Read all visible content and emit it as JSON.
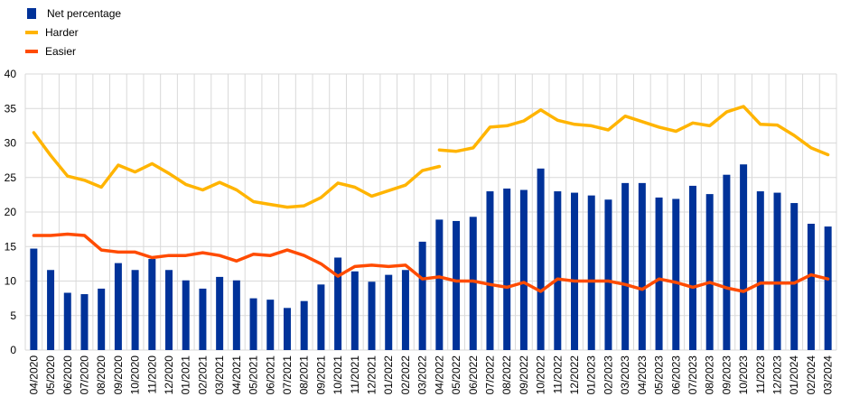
{
  "chart_data": {
    "type": "bar+line",
    "title": "",
    "xlabel": "",
    "ylabel": "",
    "ylim": [
      0,
      40
    ],
    "yticks": [
      "0",
      "5",
      "10",
      "15",
      "20",
      "25",
      "30",
      "35",
      "40"
    ],
    "grid": true,
    "legend_position": "top-left",
    "categories": [
      "04/2020",
      "05/2020",
      "06/2020",
      "07/2020",
      "08/2020",
      "09/2020",
      "10/2020",
      "11/2020",
      "12/2020",
      "01/2021",
      "02/2021",
      "03/2021",
      "04/2021",
      "05/2021",
      "06/2021",
      "07/2021",
      "08/2021",
      "09/2021",
      "10/2021",
      "11/2021",
      "12/2021",
      "01/2022",
      "02/2022",
      "03/2022",
      "04/2022",
      "05/2022",
      "06/2022",
      "07/2022",
      "08/2022",
      "09/2022",
      "10/2022",
      "11/2022",
      "12/2022",
      "01/2023",
      "02/2023",
      "03/2023",
      "04/2023",
      "05/2023",
      "06/2023",
      "07/2023",
      "08/2023",
      "09/2023",
      "10/2023",
      "11/2023",
      "12/2023",
      "01/2024",
      "02/2024",
      "03/2024"
    ],
    "series": [
      {
        "name": "Net percentage",
        "type": "bar",
        "color": "#003299",
        "values": [
          14.7,
          11.6,
          8.3,
          8.1,
          8.9,
          12.6,
          11.6,
          13.2,
          11.6,
          10.1,
          8.9,
          10.6,
          10.1,
          7.5,
          7.3,
          6.1,
          7.1,
          9.5,
          13.4,
          11.4,
          9.9,
          10.9,
          11.6,
          15.7,
          18.9,
          18.7,
          19.3,
          23.0,
          23.4,
          23.2,
          26.3,
          23.0,
          22.8,
          22.4,
          21.8,
          24.2,
          24.2,
          22.1,
          21.9,
          23.8,
          22.6,
          25.4,
          26.9,
          23.0,
          22.8,
          21.3,
          18.3,
          17.9
        ]
      },
      {
        "name": "Harder",
        "type": "line",
        "color": "#FFB400",
        "segments": [
          {
            "start_index": 0,
            "values": [
              31.5,
              28.2,
              25.2,
              24.6,
              23.6,
              26.8,
              25.8,
              27.0,
              25.6,
              24.0,
              23.2,
              24.3,
              23.2,
              21.5,
              21.1,
              20.7,
              20.9,
              22.1,
              24.2,
              23.6,
              22.3,
              23.1,
              23.9,
              26.0,
              26.6
            ]
          },
          {
            "start_index": 24,
            "values": [
              29.0,
              28.8,
              29.3,
              32.3,
              32.5,
              33.2,
              34.8,
              33.3,
              32.7,
              32.5,
              31.9,
              33.9,
              33.1,
              32.3,
              31.7,
              32.9,
              32.5,
              34.5,
              35.3,
              32.7,
              32.6,
              31.1,
              29.3,
              28.3
            ]
          }
        ]
      },
      {
        "name": "Easier",
        "type": "line",
        "color": "#FF4B00",
        "values": [
          16.6,
          16.6,
          16.8,
          16.6,
          14.5,
          14.2,
          14.2,
          13.4,
          13.7,
          13.7,
          14.1,
          13.7,
          12.9,
          13.9,
          13.7,
          14.5,
          13.7,
          12.5,
          10.7,
          12.1,
          12.3,
          12.1,
          12.3,
          10.3,
          10.6,
          10.0,
          10.0,
          9.5,
          9.1,
          9.8,
          8.5,
          10.3,
          10.0,
          10.0,
          10.0,
          9.5,
          8.8,
          10.3,
          9.8,
          9.1,
          9.8,
          9.0,
          8.5,
          9.7,
          9.7,
          9.7,
          10.9,
          10.3
        ]
      }
    ]
  }
}
